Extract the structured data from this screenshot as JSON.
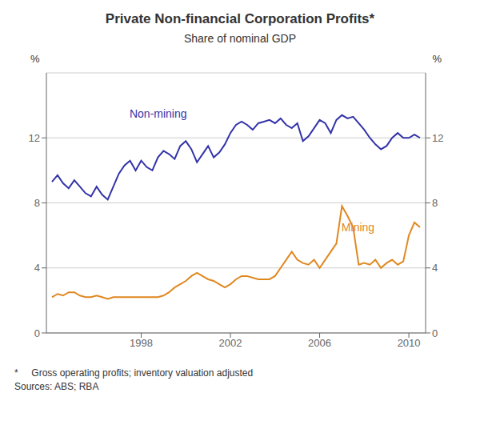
{
  "chart_data": {
    "type": "line",
    "title": "Private Non-financial Corporation Profits*",
    "subtitle": "Share of nominal GDP",
    "ylabel": "%",
    "y2label": "%",
    "footnotes": [
      "*     Gross operating profits; inventory valuation adjusted",
      "Sources: ABS; RBA"
    ],
    "x": [
      1994,
      1994.25,
      1994.5,
      1994.75,
      1995,
      1995.25,
      1995.5,
      1995.75,
      1996,
      1996.25,
      1996.5,
      1996.75,
      1997,
      1997.25,
      1997.5,
      1997.75,
      1998,
      1998.25,
      1998.5,
      1998.75,
      1999,
      1999.25,
      1999.5,
      1999.75,
      2000,
      2000.25,
      2000.5,
      2000.75,
      2001,
      2001.25,
      2001.5,
      2001.75,
      2002,
      2002.25,
      2002.5,
      2002.75,
      2003,
      2003.25,
      2003.5,
      2003.75,
      2004,
      2004.25,
      2004.5,
      2004.75,
      2005,
      2005.25,
      2005.5,
      2005.75,
      2006,
      2006.25,
      2006.5,
      2006.75,
      2007,
      2007.25,
      2007.5,
      2007.75,
      2008,
      2008.25,
      2008.5,
      2008.75,
      2009,
      2009.25,
      2009.5,
      2009.75,
      2010,
      2010.25,
      2010.5
    ],
    "series": [
      {
        "name": "Non-mining",
        "color": "#3333aa",
        "values": [
          9.3,
          9.7,
          9.2,
          8.9,
          9.4,
          9.0,
          8.6,
          8.4,
          9.0,
          8.5,
          8.2,
          9.0,
          9.8,
          10.3,
          10.6,
          10.0,
          10.6,
          10.2,
          10.0,
          10.8,
          11.2,
          11.0,
          10.7,
          11.5,
          11.8,
          11.3,
          10.5,
          11.0,
          11.5,
          10.8,
          11.1,
          11.6,
          12.3,
          12.8,
          13.0,
          12.8,
          12.5,
          12.9,
          13.0,
          13.1,
          12.9,
          13.2,
          12.8,
          12.6,
          12.9,
          11.8,
          12.1,
          12.6,
          13.1,
          12.9,
          12.3,
          13.1,
          13.4,
          13.2,
          13.3,
          12.9,
          12.5,
          12.0,
          11.6,
          11.3,
          11.5,
          12.0,
          12.3,
          12.0,
          12.0,
          12.2,
          12.0
        ]
      },
      {
        "name": "Mining",
        "color": "#e08820",
        "values": [
          2.2,
          2.4,
          2.3,
          2.5,
          2.5,
          2.3,
          2.2,
          2.2,
          2.3,
          2.2,
          2.1,
          2.2,
          2.2,
          2.2,
          2.2,
          2.2,
          2.2,
          2.2,
          2.2,
          2.2,
          2.3,
          2.5,
          2.8,
          3.0,
          3.2,
          3.5,
          3.7,
          3.5,
          3.3,
          3.2,
          3.0,
          2.8,
          3.0,
          3.3,
          3.5,
          3.5,
          3.4,
          3.3,
          3.3,
          3.3,
          3.5,
          4.0,
          4.5,
          5.0,
          4.5,
          4.3,
          4.2,
          4.5,
          4.0,
          4.5,
          5.0,
          5.5,
          7.8,
          7.2,
          6.5,
          4.2,
          4.3,
          4.2,
          4.5,
          4.0,
          4.3,
          4.5,
          4.2,
          4.4,
          6.0,
          6.8,
          6.5
        ]
      }
    ],
    "annotations": [
      {
        "text": "Non-mining",
        "x": 1997.3,
        "y": 13.5,
        "color": "#3333aa"
      },
      {
        "text": "Mining",
        "x": 2006.8,
        "y": 6.5,
        "color": "#e08820"
      }
    ],
    "xlim": [
      1993.75,
      2010.75
    ],
    "xticks": [
      1998,
      2002,
      2006,
      2010
    ],
    "ylim": [
      0,
      16
    ],
    "yticks": [
      0,
      4,
      8,
      12
    ],
    "y2lim": [
      0,
      16
    ],
    "y2ticks": [
      0,
      4,
      8,
      12
    ],
    "grid": true
  }
}
